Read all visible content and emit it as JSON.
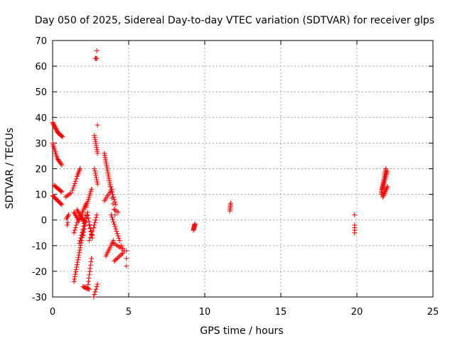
{
  "chart_data": {
    "type": "scatter",
    "title": "Day 050 of 2025, Sidereal Day-to-day VTEC variation (SDTVAR) for receiver glps",
    "xlabel": "GPS time / hours",
    "ylabel": "SDTVAR / TECUs",
    "xlim": [
      0,
      25
    ],
    "ylim": [
      -30,
      70
    ],
    "x_ticks": [
      "0",
      "5",
      "10",
      "15",
      "20",
      "25"
    ],
    "y_ticks": [
      "-30",
      "-20",
      "-10",
      "0",
      "10",
      "20",
      "30",
      "40",
      "50",
      "60",
      "70"
    ],
    "grid": true,
    "marker": "+",
    "color": "#ff0000",
    "series_segments": [
      {
        "x0": 0.0,
        "y0": 38.0,
        "x1": 0.35,
        "y1": 34.0,
        "n": 12
      },
      {
        "x0": 0.35,
        "y0": 34.0,
        "x1": 0.65,
        "y1": 32.5,
        "n": 8
      },
      {
        "x0": 0.0,
        "y0": 30.0,
        "x1": 0.3,
        "y1": 24.0,
        "n": 10
      },
      {
        "x0": 0.3,
        "y0": 24.0,
        "x1": 0.6,
        "y1": 21.5,
        "n": 7
      },
      {
        "x0": 0.0,
        "y0": 9.5,
        "x1": 0.6,
        "y1": 6.0,
        "n": 12
      },
      {
        "x0": 0.1,
        "y0": 13.5,
        "x1": 0.6,
        "y1": 11.0,
        "n": 10
      },
      {
        "x0": 0.85,
        "y0": 9.0,
        "x1": 1.2,
        "y1": 10.5,
        "n": 5
      },
      {
        "x0": 0.9,
        "y0": 0.5,
        "x1": 1.05,
        "y1": 2.0,
        "n": 4
      },
      {
        "x0": 0.95,
        "y0": -2.0,
        "x1": 1.0,
        "y1": -1.0,
        "n": 2
      },
      {
        "x0": 1.3,
        "y0": 11.5,
        "x1": 1.55,
        "y1": 16.0,
        "n": 6
      },
      {
        "x0": 1.6,
        "y0": 17.0,
        "x1": 1.8,
        "y1": 20.0,
        "n": 6
      },
      {
        "x0": 1.4,
        "y0": -24.0,
        "x1": 1.9,
        "y1": -8.0,
        "n": 18
      },
      {
        "x0": 1.9,
        "y0": -8.0,
        "x1": 2.15,
        "y1": 2.0,
        "n": 10
      },
      {
        "x0": 1.4,
        "y0": 3.0,
        "x1": 1.7,
        "y1": 0.0,
        "n": 8
      },
      {
        "x0": 1.4,
        "y0": -5.0,
        "x1": 1.6,
        "y1": -1.0,
        "n": 5
      },
      {
        "x0": 1.6,
        "y0": 4.0,
        "x1": 2.1,
        "y1": -1.0,
        "n": 12
      },
      {
        "x0": 1.7,
        "y0": -0.5,
        "x1": 2.2,
        "y1": 6.5,
        "n": 12
      },
      {
        "x0": 1.75,
        "y0": -9.0,
        "x1": 2.0,
        "y1": -4.0,
        "n": 6
      },
      {
        "x0": 2.0,
        "y0": -26.0,
        "x1": 2.4,
        "y1": -27.0,
        "n": 8
      },
      {
        "x0": 2.3,
        "y0": -26.5,
        "x1": 2.55,
        "y1": -15.0,
        "n": 10
      },
      {
        "x0": 2.0,
        "y0": -6.0,
        "x1": 2.3,
        "y1": 3.0,
        "n": 8
      },
      {
        "x0": 2.2,
        "y0": 5.0,
        "x1": 2.55,
        "y1": 12.0,
        "n": 10
      },
      {
        "x0": 2.3,
        "y0": 2.0,
        "x1": 2.6,
        "y1": -7.0,
        "n": 8
      },
      {
        "x0": 2.4,
        "y0": -2.0,
        "x1": 2.6,
        "y1": -6.0,
        "n": 4
      },
      {
        "x0": 2.4,
        "y0": -8.0,
        "x1": 2.7,
        "y1": -3.0,
        "n": 5
      },
      {
        "x0": 2.7,
        "y0": -3.0,
        "x1": 2.9,
        "y1": 2.0,
        "n": 6
      },
      {
        "x0": 2.75,
        "y0": 33.0,
        "x1": 2.95,
        "y1": 26.0,
        "n": 10
      },
      {
        "x0": 2.75,
        "y0": 20.0,
        "x1": 2.95,
        "y1": 14.0,
        "n": 8
      },
      {
        "x0": 2.8,
        "y0": 63.0,
        "x1": 2.9,
        "y1": 63.0,
        "n": 3
      },
      {
        "x0": 2.9,
        "y0": 66.0,
        "x1": 2.9,
        "y1": 66.0,
        "n": 1
      },
      {
        "x0": 2.95,
        "y0": 37.0,
        "x1": 2.95,
        "y1": 37.0,
        "n": 1
      },
      {
        "x0": 2.7,
        "y0": -30.0,
        "x1": 2.95,
        "y1": -25.0,
        "n": 6
      },
      {
        "x0": 3.4,
        "y0": 26.0,
        "x1": 3.8,
        "y1": 13.0,
        "n": 18
      },
      {
        "x0": 3.8,
        "y0": 13.0,
        "x1": 4.15,
        "y1": 6.0,
        "n": 8
      },
      {
        "x0": 3.4,
        "y0": 7.5,
        "x1": 3.9,
        "y1": 12.0,
        "n": 8
      },
      {
        "x0": 3.9,
        "y0": 8.5,
        "x1": 4.1,
        "y1": 2.0,
        "n": 4
      },
      {
        "x0": 3.85,
        "y0": 2.0,
        "x1": 4.4,
        "y1": -8.0,
        "n": 12
      },
      {
        "x0": 4.1,
        "y0": 4.0,
        "x1": 4.3,
        "y1": 3.0,
        "n": 3
      },
      {
        "x0": 3.5,
        "y0": -14.0,
        "x1": 4.0,
        "y1": -8.0,
        "n": 10
      },
      {
        "x0": 4.0,
        "y0": -9.0,
        "x1": 4.5,
        "y1": -11.0,
        "n": 6
      },
      {
        "x0": 4.05,
        "y0": -16.0,
        "x1": 4.6,
        "y1": -13.0,
        "n": 8
      },
      {
        "x0": 4.5,
        "y0": -10.0,
        "x1": 4.7,
        "y1": -12.0,
        "n": 3
      },
      {
        "x0": 4.85,
        "y0": -12.0,
        "x1": 4.85,
        "y1": -18.0,
        "n": 3
      },
      {
        "x0": 9.25,
        "y0": -4.0,
        "x1": 9.35,
        "y1": -1.5,
        "n": 10
      },
      {
        "x0": 11.65,
        "y0": 3.5,
        "x1": 11.7,
        "y1": 6.5,
        "n": 6
      },
      {
        "x0": 19.85,
        "y0": 2.0,
        "x1": 19.85,
        "y1": 2.0,
        "n": 1
      },
      {
        "x0": 19.85,
        "y0": -2.0,
        "x1": 19.85,
        "y1": -5.0,
        "n": 4
      },
      {
        "x0": 21.6,
        "y0": 10.0,
        "x1": 21.9,
        "y1": 20.0,
        "n": 18
      },
      {
        "x0": 21.65,
        "y0": 12.0,
        "x1": 22.0,
        "y1": 19.0,
        "n": 12
      },
      {
        "x0": 21.7,
        "y0": 9.0,
        "x1": 22.0,
        "y1": 13.0,
        "n": 10
      }
    ]
  }
}
